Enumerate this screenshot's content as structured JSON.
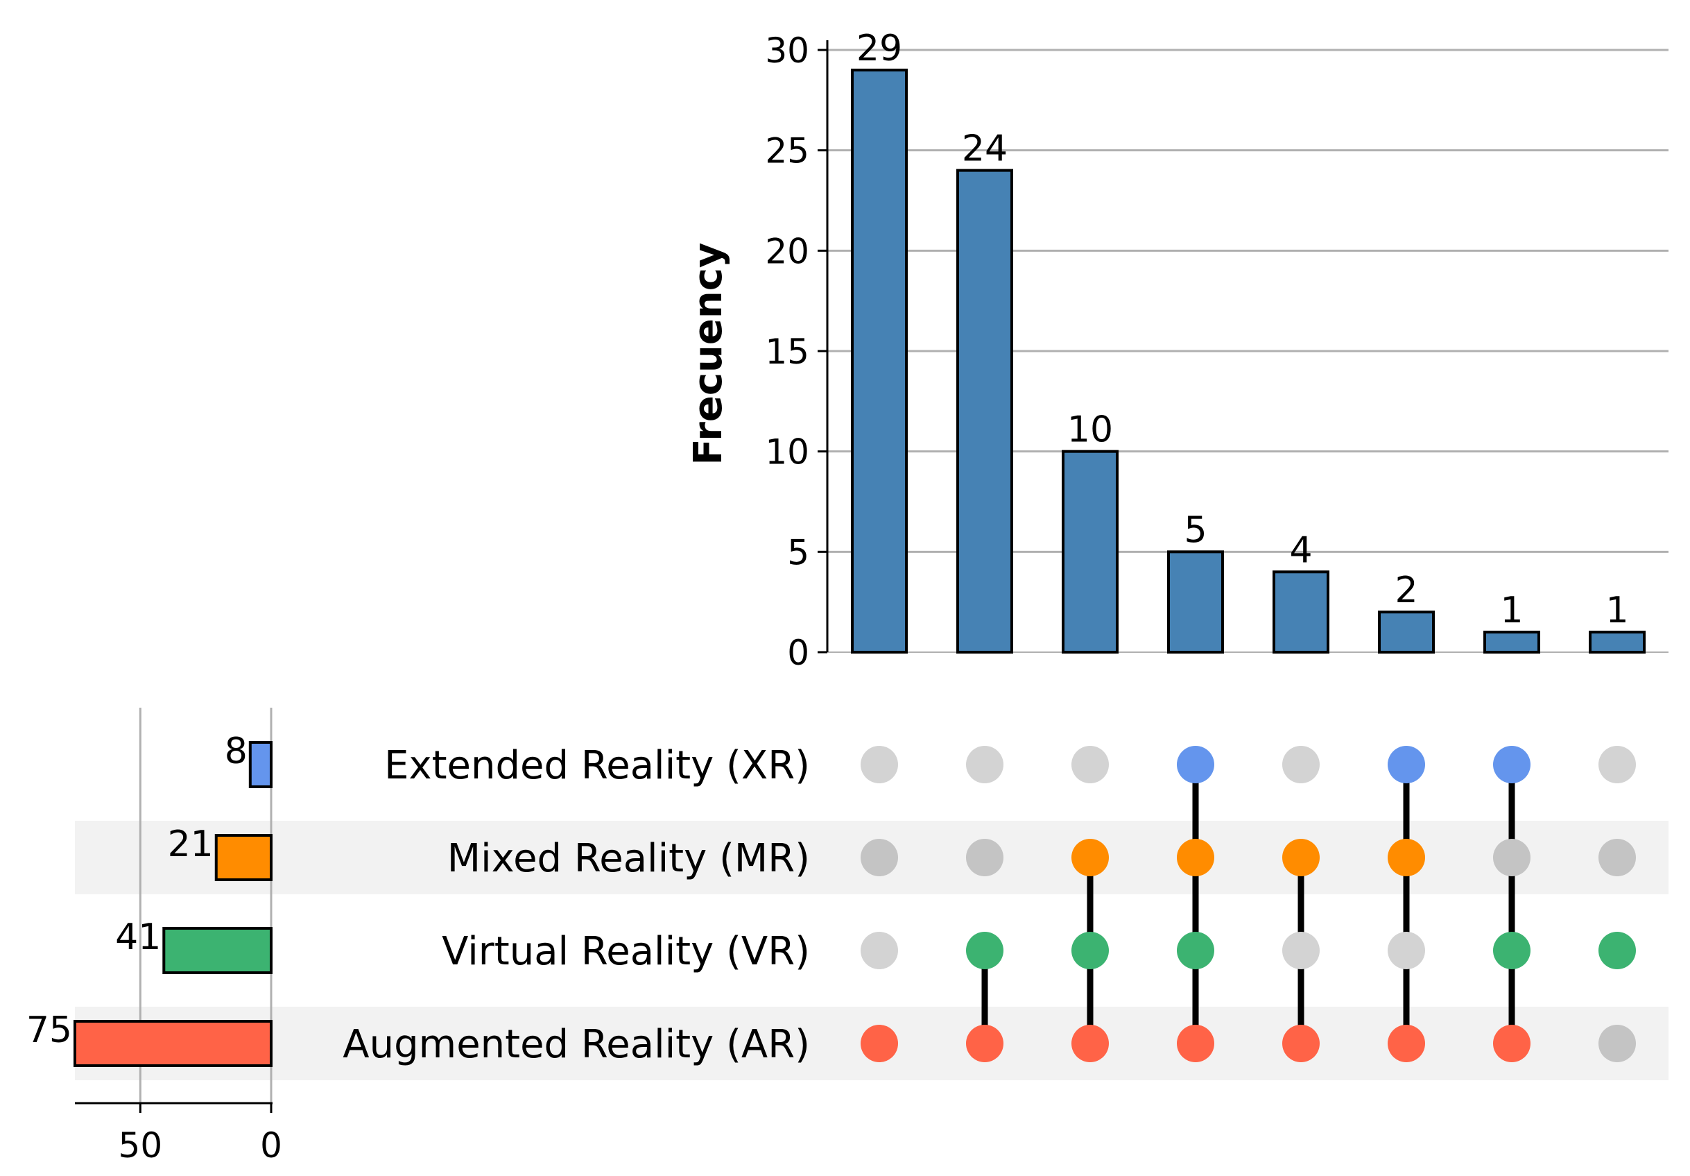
{
  "chart_data": {
    "type": "upset",
    "ylabel": "Frecuency",
    "ylim": [
      0,
      30
    ],
    "yticks": [
      "0",
      "5",
      "10",
      "15",
      "20",
      "25",
      "30"
    ],
    "intersection_values": [
      29,
      24,
      10,
      5,
      4,
      2,
      1,
      1
    ],
    "intersection_labels": [
      "29",
      "24",
      "10",
      "5",
      "4",
      "2",
      "1",
      "1"
    ],
    "bar_color": "#4682B4",
    "sets": [
      {
        "name": "Extended Reality (XR)",
        "size": 8,
        "size_label": "8",
        "color": "#6495ED"
      },
      {
        "name": "Mixed Reality (MR)",
        "size": 21,
        "size_label": "21",
        "color": "#FF8C00"
      },
      {
        "name": "Virtual Reality (VR)",
        "size": 41,
        "size_label": "41",
        "color": "#3CB371"
      },
      {
        "name": "Augmented Reality (AR)",
        "size": 75,
        "size_label": "75",
        "color": "#FF6347"
      }
    ],
    "membership": [
      [
        false,
        false,
        false,
        true
      ],
      [
        false,
        false,
        true,
        true
      ],
      [
        false,
        true,
        true,
        true
      ],
      [
        true,
        true,
        true,
        true
      ],
      [
        false,
        true,
        false,
        true
      ],
      [
        true,
        true,
        false,
        true
      ],
      [
        true,
        false,
        true,
        true
      ],
      [
        false,
        false,
        true,
        false
      ]
    ],
    "set_size_xlim": [
      75,
      0
    ],
    "set_size_ticks": [
      "50",
      "0"
    ],
    "inactive_dot_color": "#d3d3d3",
    "inactive_dot_color_shaded": "#c4c4c4",
    "row_shade_color": "#f2f2f2",
    "grid_color": "#b0b0b0"
  }
}
